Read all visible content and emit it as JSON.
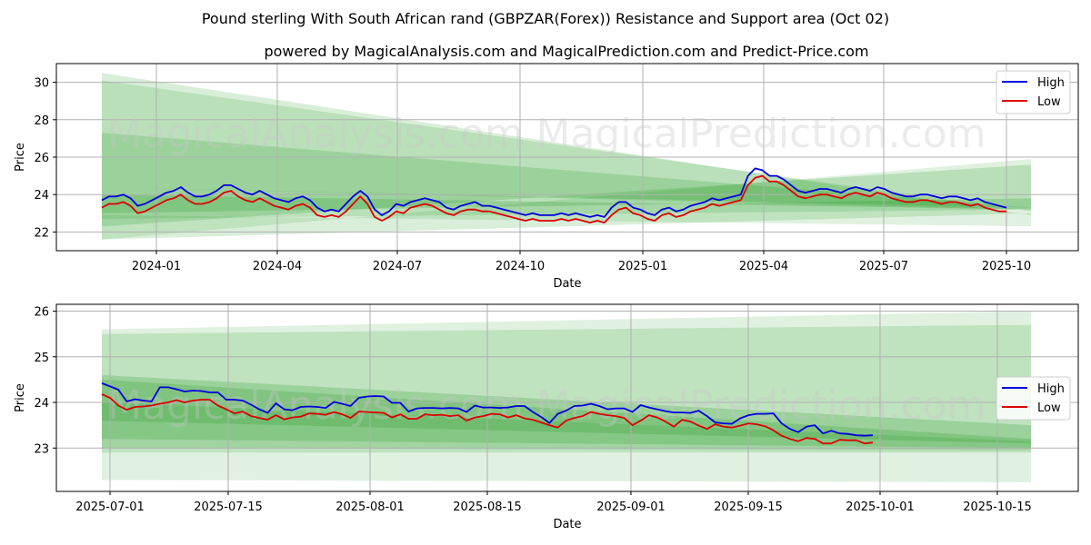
{
  "title": "Pound sterling With South African rand (GBPZAR(Forex)) Resistance and Support area (Oct 02)",
  "subtitle": "powered by MagicalAnalysis.com and MagicalPrediction.com and Predict-Price.com",
  "watermarks": [
    "MagicalAnalysis.com",
    "MagicalPrediction.com"
  ],
  "colors": {
    "high": "#0000dd",
    "low": "#dd0000",
    "band": "#2e9e2e",
    "grid": "#b0b0b0"
  },
  "chart_data": [
    {
      "type": "line",
      "xlabel": "Date",
      "ylabel": "Price",
      "x_ticks": [
        "2024-01",
        "2024-04",
        "2024-07",
        "2024-10",
        "2025-01",
        "2025-04",
        "2025-07",
        "2025-10"
      ],
      "y_ticks": [
        "22",
        "24",
        "26",
        "28",
        "30"
      ],
      "ylim": [
        21,
        31
      ],
      "legend": {
        "position": "top-right",
        "entries": [
          "High",
          "Low"
        ]
      },
      "bands": [
        {
          "start": [
            30.5,
            21.6
          ],
          "end": [
            22.9,
            23.0
          ],
          "opacity": 0.18
        },
        {
          "start": [
            30.1,
            22.7
          ],
          "end": [
            23.1,
            23.2
          ],
          "opacity": 0.18
        },
        {
          "start": [
            27.3,
            24.4
          ],
          "end": [
            23.3,
            23.2
          ],
          "opacity": 0.22
        },
        {
          "start": [
            21.6,
            22.9
          ],
          "end": [
            25.9,
            22.3
          ],
          "opacity": 0.15
        },
        {
          "start": [
            22.3,
            24.4
          ],
          "end": [
            25.6,
            23.3
          ],
          "opacity": 0.22
        },
        {
          "start": [
            23.0,
            24.0
          ],
          "end": [
            23.8,
            23.2
          ],
          "opacity": 0.25
        }
      ],
      "series": [
        {
          "name": "High",
          "values": [
            23.7,
            23.9,
            23.9,
            24.0,
            23.8,
            23.4,
            23.5,
            23.7,
            23.9,
            24.1,
            24.2,
            24.4,
            24.1,
            23.9,
            23.9,
            24.0,
            24.2,
            24.5,
            24.5,
            24.3,
            24.1,
            24.0,
            24.2,
            24.0,
            23.8,
            23.7,
            23.6,
            23.8,
            23.9,
            23.7,
            23.3,
            23.1,
            23.2,
            23.1,
            23.5,
            23.9,
            24.2,
            23.9,
            23.2,
            22.9,
            23.1,
            23.5,
            23.4,
            23.6,
            23.7,
            23.8,
            23.7,
            23.6,
            23.3,
            23.2,
            23.4,
            23.5,
            23.6,
            23.4,
            23.4,
            23.3,
            23.2,
            23.1,
            23.0,
            22.9,
            23.0,
            22.9,
            22.9,
            22.9,
            23.0,
            22.9,
            23.0,
            22.9,
            22.8,
            22.9,
            22.8,
            23.3,
            23.6,
            23.6,
            23.3,
            23.2,
            23.0,
            22.9,
            23.2,
            23.3,
            23.1,
            23.2,
            23.4,
            23.5,
            23.6,
            23.8,
            23.7,
            23.8,
            23.9,
            24.0,
            25.0,
            25.4,
            25.3,
            25.0,
            25.0,
            24.8,
            24.5,
            24.2,
            24.1,
            24.2,
            24.3,
            24.3,
            24.2,
            24.1,
            24.3,
            24.4,
            24.3,
            24.2,
            24.4,
            24.3,
            24.1,
            24.0,
            23.9,
            23.9,
            24.0,
            24.0,
            23.9,
            23.8,
            23.9,
            23.9,
            23.8,
            23.7,
            23.8,
            23.6,
            23.5,
            23.4,
            23.3
          ],
          "color": "#0000dd"
        },
        {
          "name": "Low",
          "values": [
            23.3,
            23.5,
            23.5,
            23.6,
            23.4,
            23.0,
            23.1,
            23.3,
            23.5,
            23.7,
            23.8,
            24.0,
            23.7,
            23.5,
            23.5,
            23.6,
            23.8,
            24.1,
            24.2,
            23.9,
            23.7,
            23.6,
            23.8,
            23.6,
            23.4,
            23.3,
            23.2,
            23.4,
            23.5,
            23.3,
            22.9,
            22.8,
            22.9,
            22.8,
            23.1,
            23.5,
            23.9,
            23.5,
            22.8,
            22.6,
            22.8,
            23.1,
            23.0,
            23.3,
            23.4,
            23.5,
            23.4,
            23.2,
            23.0,
            22.9,
            23.1,
            23.2,
            23.2,
            23.1,
            23.1,
            23.0,
            22.9,
            22.8,
            22.7,
            22.6,
            22.7,
            22.6,
            22.6,
            22.6,
            22.7,
            22.6,
            22.7,
            22.6,
            22.5,
            22.6,
            22.5,
            22.9,
            23.2,
            23.3,
            23.0,
            22.9,
            22.7,
            22.6,
            22.9,
            23.0,
            22.8,
            22.9,
            23.1,
            23.2,
            23.3,
            23.5,
            23.4,
            23.5,
            23.6,
            23.7,
            24.5,
            24.9,
            25.0,
            24.7,
            24.7,
            24.5,
            24.2,
            23.9,
            23.8,
            23.9,
            24.0,
            24.0,
            23.9,
            23.8,
            24.0,
            24.1,
            24.0,
            23.9,
            24.1,
            24.0,
            23.8,
            23.7,
            23.6,
            23.6,
            23.7,
            23.7,
            23.6,
            23.5,
            23.6,
            23.6,
            23.5,
            23.4,
            23.5,
            23.3,
            23.2,
            23.1,
            23.1
          ],
          "color": "#dd0000"
        }
      ]
    },
    {
      "type": "line",
      "xlabel": "Date",
      "ylabel": "Price",
      "x_ticks": [
        "2025-07-01",
        "2025-07-15",
        "2025-08-01",
        "2025-08-15",
        "2025-09-01",
        "2025-09-15",
        "2025-10-01",
        "2025-10-15"
      ],
      "y_ticks": [
        "23",
        "24",
        "25",
        "26"
      ],
      "ylim": [
        22.05,
        26.15
      ],
      "legend": {
        "position": "center-right",
        "entries": [
          "High",
          "Low"
        ]
      },
      "bands": [
        {
          "start": [
            25.6,
            22.3
          ],
          "end": [
            26.0,
            22.25
          ],
          "opacity": 0.15
        },
        {
          "start": [
            25.5,
            22.9
          ],
          "end": [
            25.7,
            22.9
          ],
          "opacity": 0.18
        },
        {
          "start": [
            24.6,
            23.2
          ],
          "end": [
            23.5,
            23.0
          ],
          "opacity": 0.25
        },
        {
          "start": [
            24.5,
            23.6
          ],
          "end": [
            23.2,
            23.1
          ],
          "opacity": 0.25
        },
        {
          "start": [
            24.0,
            23.0
          ],
          "end": [
            23.15,
            22.95
          ],
          "opacity": 0.2
        }
      ],
      "series": [
        {
          "name": "High",
          "values": [
            24.42,
            24.35,
            24.28,
            24.02,
            24.07,
            24.04,
            24.02,
            24.33,
            24.33,
            24.29,
            24.24,
            24.26,
            24.25,
            24.22,
            24.22,
            24.06,
            24.06,
            24.04,
            23.95,
            23.85,
            23.77,
            23.98,
            23.85,
            23.83,
            23.9,
            23.91,
            23.9,
            23.88,
            24.01,
            23.97,
            23.92,
            24.1,
            24.13,
            24.14,
            24.13,
            23.99,
            23.99,
            23.8,
            23.87,
            23.88,
            23.88,
            23.87,
            23.88,
            23.87,
            23.79,
            23.93,
            23.89,
            23.89,
            23.88,
            23.89,
            23.92,
            23.92,
            23.79,
            23.68,
            23.55,
            23.75,
            23.82,
            23.92,
            23.93,
            23.97,
            23.92,
            23.85,
            23.87,
            23.87,
            23.79,
            23.94,
            23.89,
            23.85,
            23.81,
            23.78,
            23.78,
            23.77,
            23.82,
            23.7,
            23.56,
            23.54,
            23.53,
            23.65,
            23.72,
            23.75,
            23.75,
            23.76,
            23.54,
            23.42,
            23.35,
            23.47,
            23.5,
            23.32,
            23.38,
            23.32,
            23.31,
            23.28,
            23.27,
            23.28
          ],
          "color": "#0000dd"
        },
        {
          "name": "Low",
          "values": [
            24.18,
            24.1,
            23.93,
            23.84,
            23.9,
            23.91,
            23.93,
            23.97,
            24.0,
            24.05,
            24.0,
            24.04,
            24.06,
            24.06,
            23.93,
            23.85,
            23.76,
            23.8,
            23.7,
            23.66,
            23.62,
            23.72,
            23.63,
            23.67,
            23.69,
            23.76,
            23.75,
            23.73,
            23.79,
            23.74,
            23.66,
            23.8,
            23.79,
            23.78,
            23.77,
            23.67,
            23.74,
            23.64,
            23.64,
            23.74,
            23.72,
            23.73,
            23.7,
            23.72,
            23.6,
            23.67,
            23.7,
            23.75,
            23.74,
            23.67,
            23.72,
            23.65,
            23.62,
            23.56,
            23.5,
            23.45,
            23.6,
            23.66,
            23.7,
            23.79,
            23.75,
            23.72,
            23.7,
            23.66,
            23.5,
            23.6,
            23.72,
            23.67,
            23.58,
            23.47,
            23.62,
            23.58,
            23.49,
            23.42,
            23.52,
            23.47,
            23.45,
            23.49,
            23.54,
            23.52,
            23.48,
            23.39,
            23.27,
            23.2,
            23.15,
            23.22,
            23.2,
            23.1,
            23.1,
            23.18,
            23.17,
            23.17,
            23.1,
            23.12
          ],
          "color": "#dd0000"
        }
      ]
    }
  ]
}
